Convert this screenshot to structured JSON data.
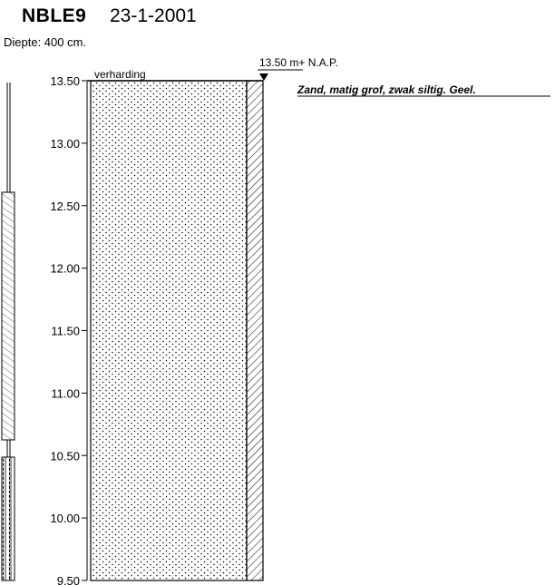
{
  "header": {
    "borehole_id": "NBLE9",
    "date": "23-1-2001",
    "depth_label": "Diepte: 400 cm."
  },
  "surface": {
    "level_label": "13.50 m+ N.A.P.",
    "top_layer_label": "verharding"
  },
  "layers": [
    {
      "top": 13.5,
      "bottom": 9.5,
      "pattern": "sand-dots",
      "description": "Zand, matig grof, zwak siltig. Geel."
    }
  ],
  "chart_data": {
    "type": "diagram",
    "axis": {
      "unit": "m+ N.A.P.",
      "range": [
        9.5,
        13.5
      ],
      "ticks": [
        "13.50",
        "13.00",
        "12.50",
        "12.00",
        "11.50",
        "11.00",
        "10.50",
        "10.00",
        "9.50"
      ]
    },
    "well": {
      "segments": [
        {
          "from": 13.5,
          "to": 12.5,
          "type": "pipe"
        },
        {
          "from": 12.5,
          "to": 10.72,
          "type": "casing-hatched"
        },
        {
          "from": 10.72,
          "to": 10.6,
          "type": "pipe"
        },
        {
          "from": 10.6,
          "to": 9.5,
          "type": "filter-slotted"
        }
      ]
    }
  },
  "colors": {
    "ink": "#000000",
    "background": "#ffffff"
  }
}
